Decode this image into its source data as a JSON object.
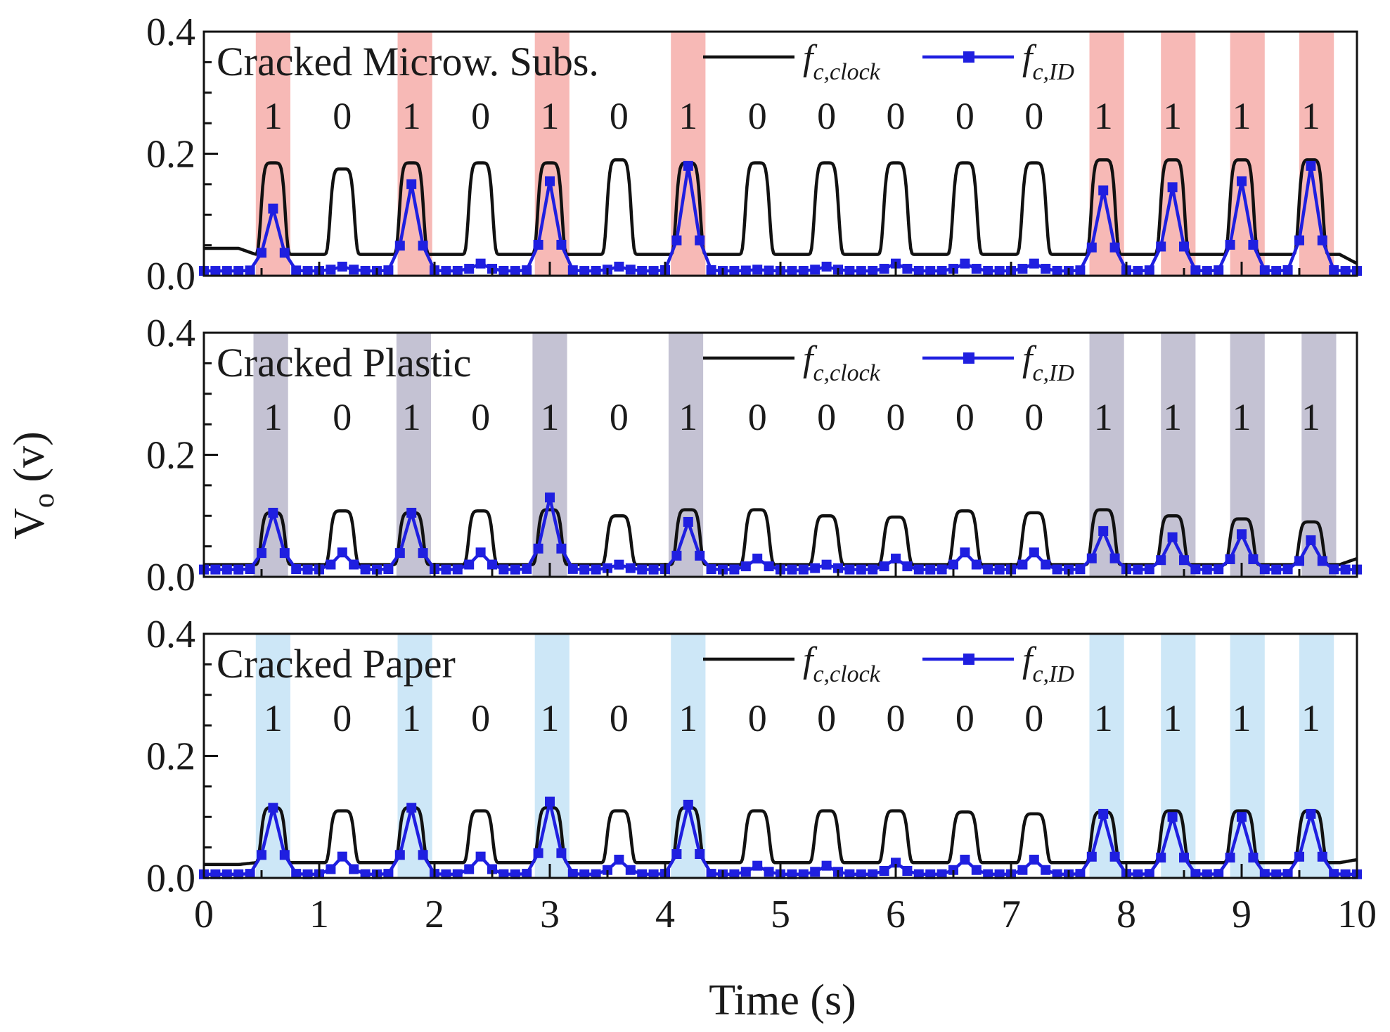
{
  "chart_data": {
    "type": "line",
    "xlabel": "Time (s)",
    "ylabel_main": "V",
    "ylabel_sub": "o",
    "ylabel_unit": " (v)",
    "xlim": [
      0,
      10
    ],
    "ylim": [
      0,
      0.4
    ],
    "x_ticks": [
      "0",
      "1",
      "2",
      "3",
      "4",
      "5",
      "6",
      "7",
      "8",
      "9",
      "10"
    ],
    "y_ticks": [
      "0.0",
      "0.2",
      "0.4"
    ],
    "bit_positions": [
      0.6,
      1.2,
      1.8,
      2.4,
      3.0,
      3.6,
      4.2,
      4.8,
      5.4,
      6.0,
      6.6,
      7.2,
      7.8,
      8.4,
      9.0,
      9.6
    ],
    "bits": [
      "1",
      "0",
      "1",
      "0",
      "1",
      "0",
      "1",
      "0",
      "0",
      "0",
      "0",
      "0",
      "1",
      "1",
      "1",
      "1"
    ],
    "legend": [
      {
        "main": "f",
        "sub": "c,clock",
        "color": "#111111",
        "marker": "none"
      },
      {
        "main": "f",
        "sub": "c,ID",
        "color": "#1f1fe0",
        "marker": "square"
      }
    ],
    "panels": [
      {
        "title": "Cracked Microw. Subs.",
        "highlight_color": "#f7b9b6",
        "highlights": [
          [
            0.45,
            0.75
          ],
          [
            1.68,
            1.98
          ],
          [
            2.87,
            3.17
          ],
          [
            4.05,
            4.35
          ],
          [
            7.68,
            7.98
          ],
          [
            8.3,
            8.6
          ],
          [
            8.9,
            9.2
          ],
          [
            9.5,
            9.8
          ]
        ],
        "clock": {
          "baseline": 0.045,
          "baseline_end": 0.02,
          "peaks": [
            0.185,
            0.175,
            0.185,
            0.185,
            0.185,
            0.19,
            0.185,
            0.185,
            0.185,
            0.185,
            0.185,
            0.185,
            0.19,
            0.19,
            0.19,
            0.19
          ],
          "min_between": 0.035
        },
        "id_peaks": [
          0.11,
          0.015,
          0.15,
          0.02,
          0.155,
          0.015,
          0.18,
          0.01,
          0.015,
          0.02,
          0.02,
          0.02,
          0.14,
          0.145,
          0.155,
          0.18
        ],
        "id_baseline": 0.008
      },
      {
        "title": "Cracked Plastic",
        "highlight_color": "#c4c2d3",
        "highlights": [
          [
            0.43,
            0.73
          ],
          [
            1.67,
            1.97
          ],
          [
            2.85,
            3.15
          ],
          [
            4.03,
            4.33
          ],
          [
            7.68,
            7.98
          ],
          [
            8.3,
            8.6
          ],
          [
            8.9,
            9.2
          ],
          [
            9.52,
            9.82
          ]
        ],
        "clock": {
          "baseline": 0.02,
          "baseline_end": 0.03,
          "peaks": [
            0.105,
            0.108,
            0.105,
            0.108,
            0.11,
            0.1,
            0.11,
            0.11,
            0.1,
            0.098,
            0.108,
            0.105,
            0.11,
            0.1,
            0.095,
            0.09
          ],
          "min_between": 0.02
        },
        "id_peaks": [
          0.105,
          0.04,
          0.105,
          0.04,
          0.13,
          0.02,
          0.09,
          0.03,
          0.02,
          0.03,
          0.04,
          0.04,
          0.075,
          0.065,
          0.07,
          0.06
        ],
        "id_baseline": 0.012
      },
      {
        "title": "Cracked Paper",
        "highlight_color": "#cde7f7",
        "highlights": [
          [
            0.45,
            0.75
          ],
          [
            1.68,
            1.98
          ],
          [
            2.87,
            3.17
          ],
          [
            4.05,
            4.35
          ],
          [
            7.68,
            7.98
          ],
          [
            8.3,
            8.6
          ],
          [
            8.9,
            9.2
          ],
          [
            9.5,
            9.8
          ]
        ],
        "clock": {
          "baseline": 0.022,
          "baseline_end": 0.03,
          "peaks": [
            0.115,
            0.11,
            0.115,
            0.11,
            0.115,
            0.11,
            0.115,
            0.11,
            0.11,
            0.11,
            0.108,
            0.105,
            0.108,
            0.11,
            0.11,
            0.11
          ],
          "min_between": 0.025
        },
        "id_peaks": [
          0.115,
          0.035,
          0.115,
          0.035,
          0.125,
          0.03,
          0.12,
          0.02,
          0.02,
          0.025,
          0.03,
          0.03,
          0.105,
          0.1,
          0.1,
          0.105
        ],
        "id_baseline": 0.006
      }
    ]
  }
}
